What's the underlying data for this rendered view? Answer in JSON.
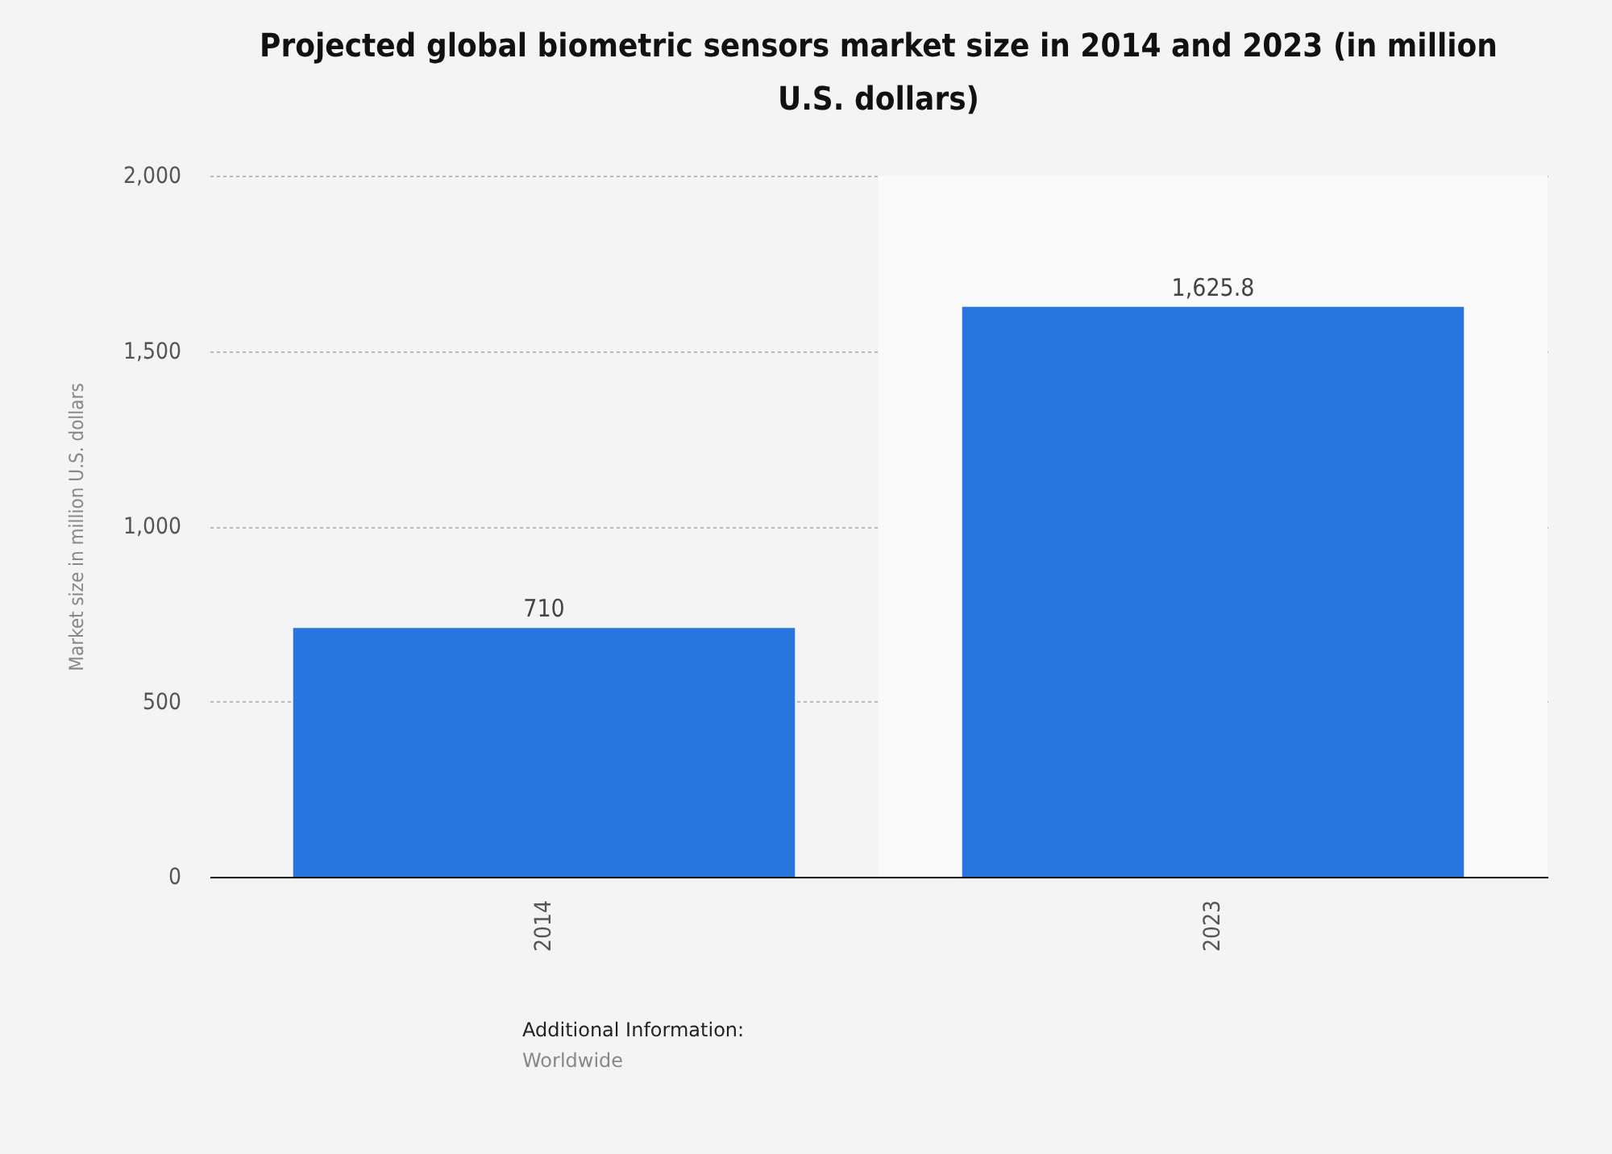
{
  "chart_data": {
    "type": "bar",
    "title": "Projected global biometric sensors market size in 2014 and 2023 (in million U.S. dollars)",
    "ylabel": "Market size in million U.S. dollars",
    "categories": [
      "2014",
      "2023"
    ],
    "values": [
      710,
      1625.8
    ],
    "color": "#2876dd",
    "value_labels": [
      "710",
      "1,625.8"
    ],
    "ylim": [
      0,
      2000
    ],
    "yticks": [
      {
        "value": 0,
        "label": "0"
      },
      {
        "value": 500,
        "label": "500"
      },
      {
        "value": 1000,
        "label": "1,000"
      },
      {
        "value": 1500,
        "label": "1,500"
      },
      {
        "value": 2000,
        "label": "2,000"
      }
    ],
    "grid": "y",
    "bands": [
      {
        "axis": "x",
        "from": "2023",
        "to": "2023",
        "color": "#fafafa"
      }
    ],
    "annotations": [
      "Additional Information:",
      "Worldwide"
    ]
  }
}
